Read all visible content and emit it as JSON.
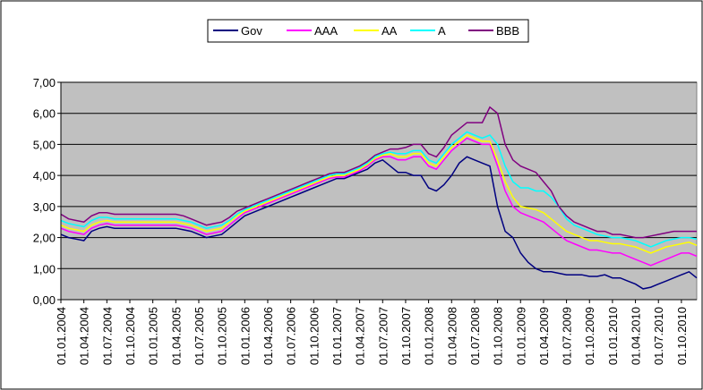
{
  "chart_data": {
    "type": "line",
    "categories": [
      "01.01.2004",
      null,
      null,
      "01.04.2004",
      null,
      null,
      "01.07.2004",
      null,
      null,
      "01.10.2004",
      null,
      null,
      "01.01.2005",
      null,
      null,
      "01.04.2005",
      null,
      null,
      "01.07.2005",
      null,
      null,
      "01.10.2005",
      null,
      null,
      "01.01.2006",
      null,
      null,
      "01.04.2006",
      null,
      null,
      "01.07.2006",
      null,
      null,
      "01.10.2006",
      null,
      null,
      "01.01.2007",
      null,
      null,
      "01.04.2007",
      null,
      null,
      "01.07.2007",
      null,
      null,
      "01.10.2007",
      null,
      null,
      "01.01.2008",
      null,
      null,
      "01.04.2008",
      null,
      null,
      "01.07.2008",
      null,
      null,
      "01.10.2008",
      null,
      null,
      "01.01.2009",
      null,
      null,
      "01.04.2009",
      null,
      null,
      "01.07.2009",
      null,
      null,
      "01.10.2009",
      null,
      null,
      "01.01.2010",
      null,
      null,
      "01.04.2010",
      null,
      null,
      "01.07.2010",
      null,
      null,
      "01.10.2010",
      null,
      null
    ],
    "series": [
      {
        "name": "Gov",
        "color": "#000080",
        "values": [
          2.1,
          2.0,
          1.95,
          1.9,
          2.2,
          2.3,
          2.35,
          2.3,
          2.3,
          2.3,
          2.3,
          2.3,
          2.3,
          2.3,
          2.3,
          2.3,
          2.25,
          2.2,
          2.1,
          2.0,
          2.05,
          2.1,
          2.3,
          2.5,
          2.7,
          2.8,
          2.9,
          3.0,
          3.1,
          3.2,
          3.3,
          3.4,
          3.5,
          3.6,
          3.7,
          3.8,
          3.9,
          3.9,
          4.0,
          4.1,
          4.2,
          4.4,
          4.5,
          4.3,
          4.1,
          4.1,
          4.0,
          4.0,
          3.6,
          3.5,
          3.7,
          4.0,
          4.4,
          4.6,
          4.5,
          4.4,
          4.3,
          3.0,
          2.2,
          2.0,
          1.5,
          1.2,
          1.0,
          0.9,
          0.9,
          0.85,
          0.8,
          0.8,
          0.8,
          0.75,
          0.75,
          0.8,
          0.7,
          0.7,
          0.6,
          0.5,
          0.35,
          0.4,
          0.5,
          0.6,
          0.7,
          0.8,
          0.9,
          0.7
        ]
      },
      {
        "name": "AAA",
        "color": "#ff00ff",
        "values": [
          2.3,
          2.2,
          2.15,
          2.1,
          2.3,
          2.4,
          2.45,
          2.4,
          2.4,
          2.4,
          2.4,
          2.4,
          2.4,
          2.4,
          2.4,
          2.4,
          2.35,
          2.3,
          2.2,
          2.1,
          2.15,
          2.2,
          2.4,
          2.6,
          2.8,
          2.9,
          3.0,
          3.1,
          3.2,
          3.3,
          3.4,
          3.5,
          3.6,
          3.7,
          3.8,
          3.9,
          3.95,
          3.95,
          4.05,
          4.15,
          4.3,
          4.5,
          4.6,
          4.6,
          4.5,
          4.5,
          4.6,
          4.6,
          4.3,
          4.2,
          4.5,
          4.8,
          5.0,
          5.2,
          5.1,
          5.0,
          5.0,
          4.3,
          3.5,
          3.0,
          2.8,
          2.7,
          2.6,
          2.5,
          2.3,
          2.1,
          1.9,
          1.8,
          1.7,
          1.6,
          1.6,
          1.55,
          1.5,
          1.5,
          1.4,
          1.3,
          1.2,
          1.1,
          1.2,
          1.3,
          1.4,
          1.5,
          1.5,
          1.4
        ]
      },
      {
        "name": "AA",
        "color": "#ffff00",
        "values": [
          2.4,
          2.3,
          2.25,
          2.2,
          2.4,
          2.5,
          2.55,
          2.5,
          2.5,
          2.5,
          2.5,
          2.5,
          2.5,
          2.5,
          2.5,
          2.5,
          2.45,
          2.4,
          2.3,
          2.2,
          2.25,
          2.3,
          2.5,
          2.7,
          2.85,
          2.95,
          3.05,
          3.15,
          3.25,
          3.35,
          3.45,
          3.55,
          3.65,
          3.75,
          3.85,
          3.95,
          4.0,
          4.0,
          4.1,
          4.2,
          4.35,
          4.55,
          4.65,
          4.7,
          4.6,
          4.6,
          4.7,
          4.7,
          4.4,
          4.3,
          4.6,
          4.9,
          5.1,
          5.3,
          5.2,
          5.1,
          5.1,
          4.5,
          3.8,
          3.3,
          3.0,
          2.95,
          2.9,
          2.8,
          2.6,
          2.4,
          2.2,
          2.1,
          2.0,
          1.9,
          1.9,
          1.85,
          1.8,
          1.8,
          1.75,
          1.7,
          1.6,
          1.5,
          1.6,
          1.7,
          1.75,
          1.8,
          1.85,
          1.75
        ]
      },
      {
        "name": "A",
        "color": "#00ffff",
        "values": [
          2.55,
          2.45,
          2.4,
          2.35,
          2.55,
          2.65,
          2.65,
          2.6,
          2.6,
          2.6,
          2.6,
          2.6,
          2.6,
          2.6,
          2.6,
          2.6,
          2.55,
          2.5,
          2.4,
          2.3,
          2.35,
          2.4,
          2.55,
          2.75,
          2.9,
          3.0,
          3.1,
          3.2,
          3.3,
          3.4,
          3.5,
          3.6,
          3.7,
          3.8,
          3.9,
          4.0,
          4.05,
          4.05,
          4.15,
          4.25,
          4.4,
          4.6,
          4.7,
          4.75,
          4.7,
          4.7,
          4.8,
          4.8,
          4.5,
          4.4,
          4.7,
          5.0,
          5.2,
          5.4,
          5.3,
          5.2,
          5.3,
          5.0,
          4.3,
          3.8,
          3.6,
          3.6,
          3.5,
          3.5,
          3.3,
          3.0,
          2.6,
          2.4,
          2.3,
          2.2,
          2.1,
          2.05,
          2.0,
          2.0,
          1.95,
          1.9,
          1.8,
          1.7,
          1.8,
          1.9,
          1.95,
          2.0,
          2.0,
          1.95
        ]
      },
      {
        "name": "BBB",
        "color": "#800080",
        "values": [
          2.75,
          2.6,
          2.55,
          2.5,
          2.7,
          2.8,
          2.8,
          2.75,
          2.75,
          2.75,
          2.75,
          2.75,
          2.75,
          2.75,
          2.75,
          2.75,
          2.7,
          2.6,
          2.5,
          2.4,
          2.45,
          2.5,
          2.65,
          2.85,
          2.95,
          3.05,
          3.15,
          3.25,
          3.35,
          3.45,
          3.55,
          3.65,
          3.75,
          3.85,
          3.95,
          4.05,
          4.1,
          4.1,
          4.2,
          4.3,
          4.45,
          4.65,
          4.75,
          4.85,
          4.85,
          4.9,
          5.0,
          5.0,
          4.7,
          4.6,
          4.9,
          5.3,
          5.5,
          5.7,
          5.7,
          5.7,
          6.2,
          6.0,
          5.0,
          4.5,
          4.3,
          4.2,
          4.1,
          3.8,
          3.5,
          3.0,
          2.7,
          2.5,
          2.4,
          2.3,
          2.2,
          2.2,
          2.1,
          2.1,
          2.05,
          2.0,
          2.0,
          2.05,
          2.1,
          2.15,
          2.2,
          2.2,
          2.2,
          2.2
        ]
      }
    ],
    "ylim": [
      0,
      7
    ],
    "yticks": [
      {
        "value": 0,
        "label": "0,00"
      },
      {
        "value": 1,
        "label": "1,00"
      },
      {
        "value": 2,
        "label": "2,00"
      },
      {
        "value": 3,
        "label": "3,00"
      },
      {
        "value": 4,
        "label": "4,00"
      },
      {
        "value": 5,
        "label": "5,00"
      },
      {
        "value": 6,
        "label": "6,00"
      },
      {
        "value": 7,
        "label": "7,00"
      }
    ],
    "grid": true
  }
}
